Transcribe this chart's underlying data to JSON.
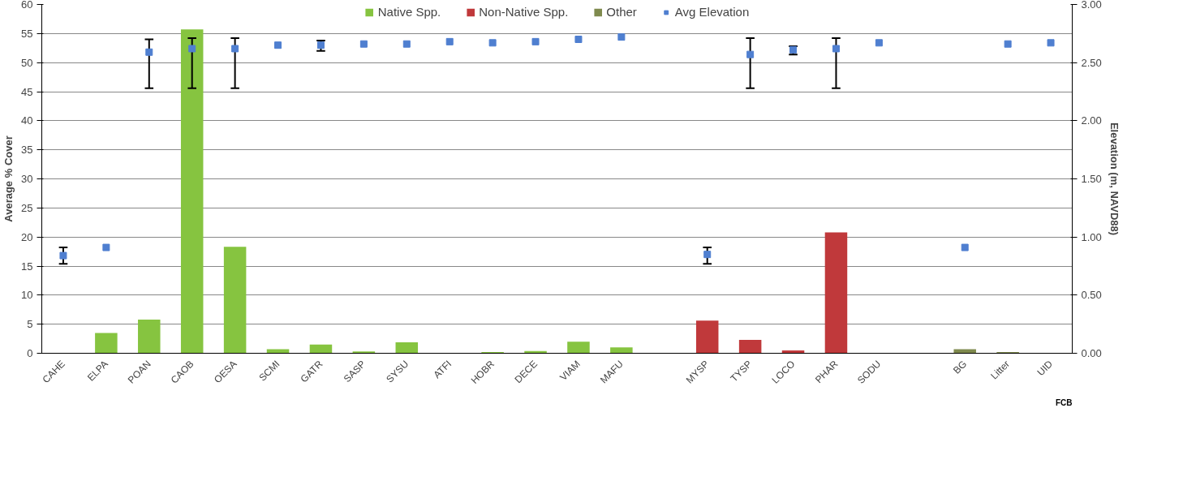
{
  "chart_data": {
    "type": "bar",
    "stacked": true,
    "xlabel": null,
    "ylabel": "Average % Cover",
    "y2label": "Elevation (m, NAVD88)",
    "categories": [
      "CAHE",
      "ELPA",
      "POAN",
      "CAOB",
      "OESA",
      "SCMI",
      "GATR",
      "SASP",
      "SYSU",
      "ATFI",
      "HOBR",
      "DECE",
      "VIAM",
      "MAFU",
      null,
      "MYSP",
      "TYSP",
      "LOCO",
      "PHAR",
      "SODU",
      null,
      "BG",
      "Litter",
      "UID"
    ],
    "series": [
      {
        "name": "Native Spp.",
        "color": "#86c440",
        "values": [
          0,
          3.5,
          5.8,
          55.7,
          18.3,
          0.7,
          1.5,
          0.3,
          1.9,
          0,
          0.2,
          0.4,
          2.0,
          1.0,
          null,
          null,
          null,
          null,
          null,
          null,
          null,
          null,
          null,
          null
        ]
      },
      {
        "name": "Non-Native Spp.",
        "color": "#c0393b",
        "values": [
          null,
          null,
          null,
          null,
          null,
          null,
          null,
          null,
          null,
          null,
          null,
          null,
          null,
          null,
          null,
          5.6,
          2.3,
          0.5,
          20.8,
          0,
          null,
          null,
          null,
          null
        ]
      },
      {
        "name": "Other",
        "color": "#7f8a4e",
        "values": [
          null,
          null,
          null,
          null,
          null,
          null,
          null,
          null,
          null,
          null,
          null,
          null,
          null,
          null,
          null,
          null,
          null,
          null,
          null,
          null,
          null,
          0.7,
          0.2,
          0
        ]
      },
      {
        "name": "Avg Elevation",
        "type": "scatter",
        "axis": "y2",
        "marker": "square",
        "color": "#4f7fd0",
        "values": [
          0.84,
          0.91,
          2.59,
          2.62,
          2.62,
          2.65,
          2.65,
          2.66,
          2.66,
          2.68,
          2.67,
          2.68,
          2.7,
          2.72,
          null,
          0.85,
          2.57,
          2.61,
          2.62,
          2.67,
          null,
          0.91,
          2.66,
          2.67
        ],
        "errors": [
          [
            0.77,
            0.91
          ],
          null,
          [
            2.28,
            2.7
          ],
          [
            2.28,
            2.71
          ],
          [
            2.28,
            2.71
          ],
          null,
          [
            2.6,
            2.69
          ],
          null,
          null,
          null,
          null,
          null,
          null,
          null,
          null,
          [
            0.77,
            0.91
          ],
          [
            2.28,
            2.71
          ],
          [
            2.57,
            2.64
          ],
          [
            2.28,
            2.71
          ],
          null,
          null,
          null,
          null,
          null
        ]
      }
    ],
    "ylim": [
      0,
      60
    ],
    "yticks": [
      0,
      5,
      10,
      15,
      20,
      25,
      30,
      35,
      40,
      45,
      50,
      55,
      60
    ],
    "y2lim": [
      0,
      3
    ],
    "y2ticks": [
      {
        "value": 0,
        "label": "0.00"
      },
      {
        "value": 0.5,
        "label": "0.50"
      },
      {
        "value": 1,
        "label": "1.00"
      },
      {
        "value": 1.5,
        "label": "1.50"
      },
      {
        "value": 2,
        "label": "2.00"
      },
      {
        "value": 2.5,
        "label": "2.50"
      },
      {
        "value": 3,
        "label": "3.00"
      }
    ],
    "grid": "y",
    "legend": "top",
    "annotations": [
      "FCB"
    ]
  }
}
